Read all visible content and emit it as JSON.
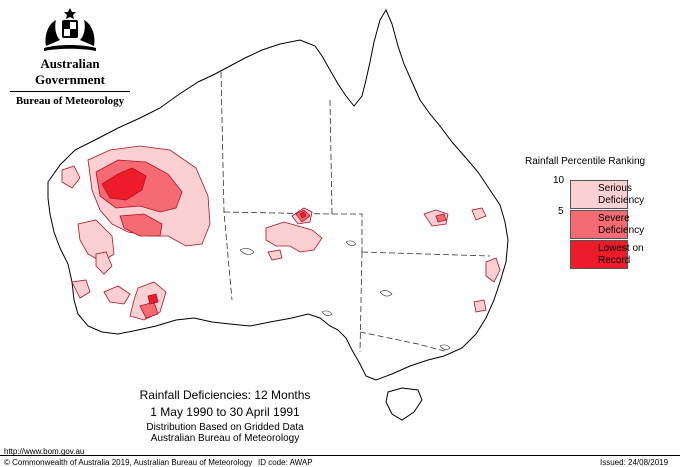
{
  "header": {
    "government": "Australian Government",
    "bureau": "Bureau of Meteorology"
  },
  "legend": {
    "title": "Rainfall Percentile Ranking",
    "ticks": [
      "10",
      "5"
    ],
    "categories": [
      {
        "label_line1": "Serious",
        "label_line2": "Deficiency",
        "color": "#fbd0d2"
      },
      {
        "label_line1": "Severe",
        "label_line2": "Deficiency",
        "color": "#f56a73"
      },
      {
        "label_line1": "Lowest on",
        "label_line2": "Record",
        "color": "#ee1b2a"
      }
    ],
    "outline_color": "#b01226"
  },
  "title": {
    "line1": "Rainfall Deficiencies: 12 Months",
    "line2": "1 May 1990 to 30 April 1991",
    "line3": "Distribution Based on Gridded Data",
    "line4": "Australian Bureau of Meteorology"
  },
  "footer": {
    "url": "http://www.bom.gov.au",
    "copyright": "© Commonwealth of Australia 2019, Australian Bureau of Meteorology",
    "id_code": "ID code: AWAP",
    "issued": "Issued: 24/08/2019"
  }
}
